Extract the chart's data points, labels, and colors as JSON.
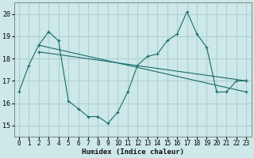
{
  "title": "",
  "xlabel": "Humidex (Indice chaleur)",
  "bg_color": "#cce8e8",
  "grid_color": "#b0d0d0",
  "line_color": "#1a6b6b",
  "xlim": [
    -0.5,
    23.5
  ],
  "ylim": [
    14.5,
    20.5
  ],
  "yticks": [
    15,
    16,
    17,
    18,
    19,
    20
  ],
  "xticks": [
    0,
    1,
    2,
    3,
    4,
    5,
    6,
    7,
    8,
    9,
    10,
    11,
    12,
    13,
    14,
    15,
    16,
    17,
    18,
    19,
    20,
    21,
    22,
    23
  ],
  "series1": {
    "x": [
      0,
      1,
      2,
      3,
      4,
      5,
      6,
      7,
      8,
      9,
      10,
      11,
      12,
      13,
      14,
      15,
      16,
      17,
      18,
      19,
      20,
      21,
      22,
      23
    ],
    "y": [
      16.5,
      17.7,
      18.6,
      19.2,
      18.8,
      16.1,
      15.75,
      15.4,
      15.4,
      15.1,
      15.6,
      16.5,
      17.7,
      18.1,
      18.2,
      18.8,
      19.1,
      20.1,
      19.1,
      18.5,
      16.5,
      16.5,
      17.0,
      17.0
    ]
  },
  "series2": {
    "x": [
      2,
      23
    ],
    "y": [
      18.6,
      16.5
    ]
  },
  "series3": {
    "x": [
      2,
      23
    ],
    "y": [
      18.3,
      17.0
    ]
  }
}
